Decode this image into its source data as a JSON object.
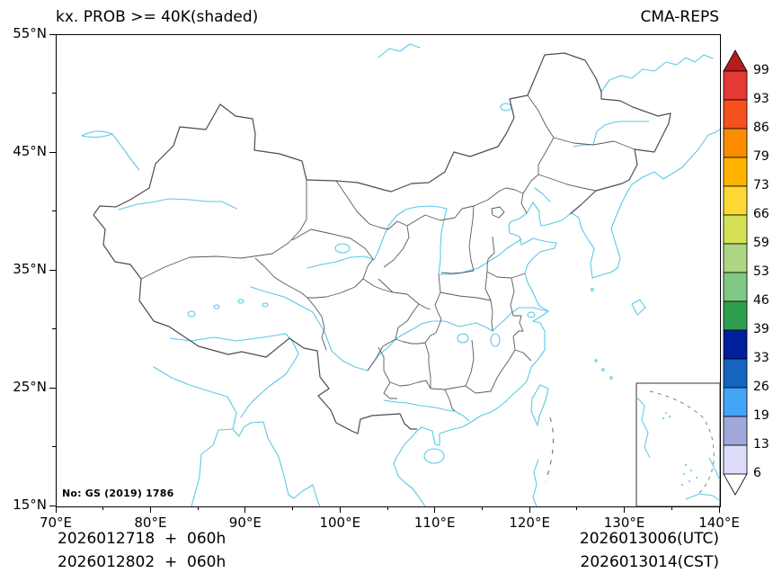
{
  "header": {
    "title_left": "kx. PROB >= 40K(shaded)",
    "title_right": "CMA-REPS"
  },
  "map": {
    "license_note": "No: GS (2019) 1786",
    "water_color": "#5bc8e6",
    "national_border_color": "#4d4d4d",
    "province_border_color": "#5a5a5a"
  },
  "axes": {
    "x_range": [
      70,
      140
    ],
    "y_range": [
      15,
      55
    ],
    "x": [
      {
        "label": "70°E",
        "value": 70
      },
      {
        "label": "80°E",
        "value": 80
      },
      {
        "label": "90°E",
        "value": 90
      },
      {
        "label": "100°E",
        "value": 100
      },
      {
        "label": "110°E",
        "value": 110
      },
      {
        "label": "120°E",
        "value": 120
      },
      {
        "label": "130°E",
        "value": 130
      },
      {
        "label": "140°E",
        "value": 140
      }
    ],
    "x_minor": [
      75,
      85,
      95,
      105,
      115,
      125,
      135
    ],
    "y": [
      {
        "label": "55°N",
        "value": 55
      },
      {
        "label": "45°N",
        "value": 45
      },
      {
        "label": "35°N",
        "value": 35
      },
      {
        "label": "25°N",
        "value": 25
      },
      {
        "label": "15°N",
        "value": 15
      }
    ],
    "y_minor": [
      20,
      30,
      40,
      50
    ]
  },
  "colorbar": {
    "tick_labels": [
      "99",
      "93",
      "86",
      "79",
      "73",
      "66",
      "59",
      "53",
      "46",
      "39",
      "33",
      "26",
      "19",
      "13",
      "6"
    ],
    "colors_top_to_bottom": [
      "#b71c1c",
      "#e53935",
      "#f4511e",
      "#fb8c00",
      "#ffb300",
      "#fdd835",
      "#d4e157",
      "#aed581",
      "#81c784",
      "#2e9e4f",
      "#001f9c",
      "#1565c0",
      "#42a5f5",
      "#9fa8da",
      "#dcdcf8",
      "#ffffff"
    ]
  },
  "footer": {
    "left_line1": "2026012718  +  060h",
    "left_line2": "2026012802  +  060h",
    "right_line1": "2026013006(UTC)",
    "right_line2": "2026013014(CST)"
  }
}
